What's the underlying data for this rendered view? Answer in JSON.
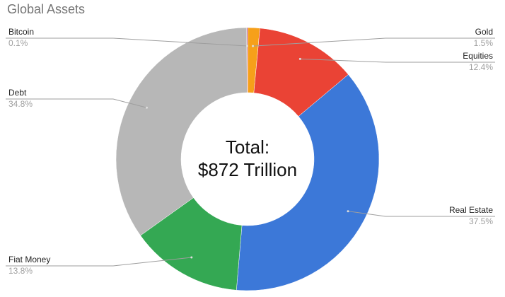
{
  "chart_data": {
    "type": "donut",
    "title": "Global Assets",
    "center_text": [
      "Total:",
      "$872 Trillion"
    ],
    "categories": [
      "Gold",
      "Equities",
      "Real Estate",
      "Fiat Money",
      "Debt",
      "Bitcoin"
    ],
    "values": [
      1.5,
      12.4,
      37.5,
      13.8,
      34.8,
      0.1
    ],
    "value_labels": [
      "1.5%",
      "12.4%",
      "37.5%",
      "13.8%",
      "34.8%",
      "0.1%"
    ],
    "colors": [
      "#f6a01a",
      "#ea4335",
      "#3c78d8",
      "#34a853",
      "#b7b7b7",
      "#9c27b0"
    ]
  }
}
